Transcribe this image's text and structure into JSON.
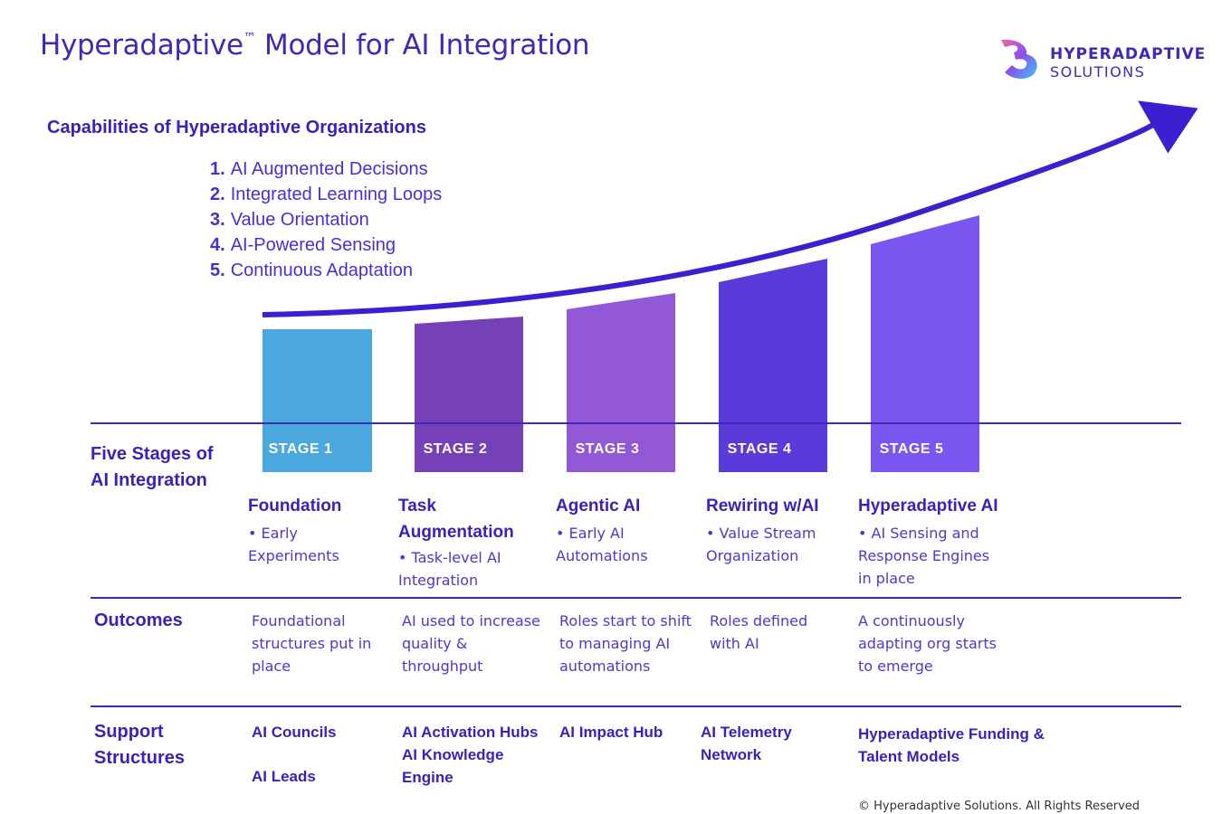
{
  "title": {
    "main": "Hyperadaptive",
    "tm": "™",
    "rest": " Model for AI Integration"
  },
  "logo": {
    "line1": "HYPERADAPTIVE",
    "line2": "SOLUTIONS"
  },
  "capabilities": {
    "heading": "Capabilities of Hyperadaptive Organizations",
    "items": [
      {
        "num": "1.",
        "label": "AI Augmented Decisions"
      },
      {
        "num": "2.",
        "label": "Integrated Learning Loops"
      },
      {
        "num": "3.",
        "label": "Value Orientation"
      },
      {
        "num": "4.",
        "label": "AI-Powered Sensing"
      },
      {
        "num": "5.",
        "label": "Continuous Adaptation"
      }
    ]
  },
  "rows": {
    "stages_heading": "Five Stages of AI Integration",
    "outcomes_heading": "Outcomes",
    "support_heading": "Support Structures"
  },
  "stages": [
    {
      "label": "STAGE 1",
      "color": "#4aa8de",
      "name": "Foundation",
      "bullet": "• Early Experiments",
      "outcome": "Foundational structures put in place",
      "support1": "AI Councils",
      "support2": "AI Leads"
    },
    {
      "label": "STAGE 2",
      "color": "#7640b8",
      "name": "Task Augmentation",
      "bullet": "• Task-level AI Integration",
      "outcome": "AI used to increase quality & throughput",
      "support1": "AI Activation Hubs AI Knowledge Engine",
      "support2": ""
    },
    {
      "label": "STAGE 3",
      "color": "#9358d6",
      "name": "Agentic AI",
      "bullet": "• Early AI Automations",
      "outcome": "Roles start to shift to managing AI automations",
      "support1": "AI Impact Hub",
      "support2": ""
    },
    {
      "label": "STAGE 4",
      "color": "#5a3ad8",
      "name": "Rewiring w/AI",
      "bullet": "• Value Stream Organization",
      "outcome": "Roles defined with AI",
      "support1": "AI Telemetry Network",
      "support2": ""
    },
    {
      "label": "STAGE 5",
      "color": "#7a55f0",
      "name": "Hyperadaptive AI",
      "bullet": "• AI Sensing and Response Engines in place",
      "outcome": "A continuously adapting org starts to emerge",
      "support1": "Hyperadaptive Funding & Talent Models",
      "support2": ""
    }
  ],
  "colors": {
    "arrow": "#3b1fd0",
    "line": "#3b2bb5",
    "text": "#3a22b8"
  },
  "copyright": "© Hyperadaptive Solutions. All Rights Reserved"
}
